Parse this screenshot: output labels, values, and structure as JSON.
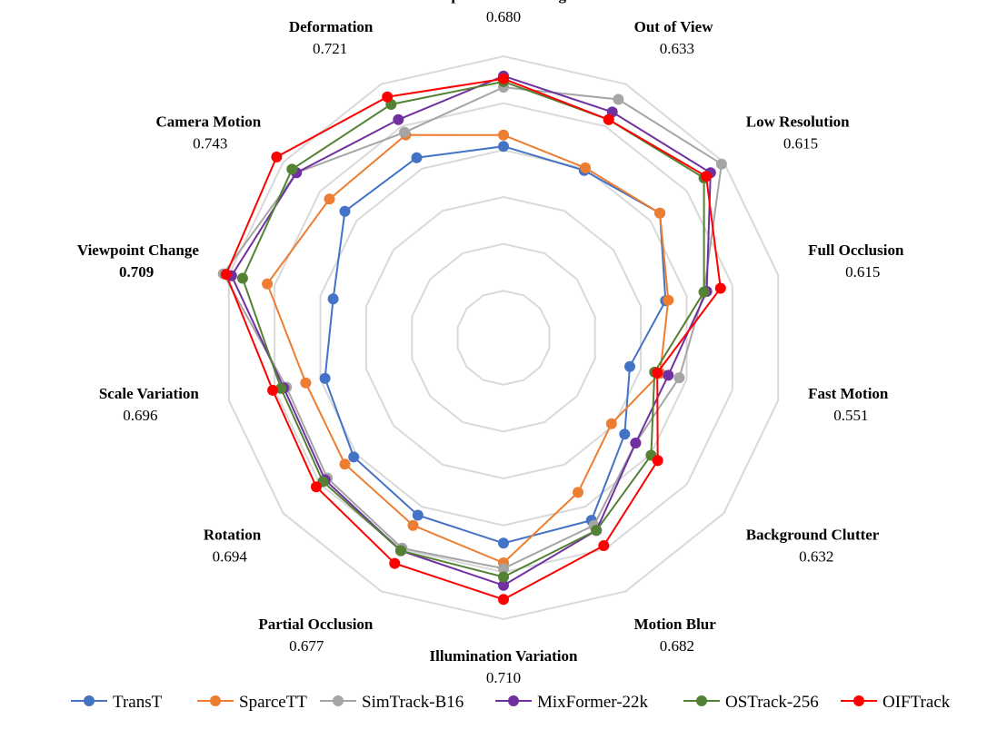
{
  "chart_data": {
    "type": "radar",
    "axes": [
      {
        "name": "Aspect Ratio Change",
        "value": "0.680"
      },
      {
        "name": "Out of View",
        "value": "0.633"
      },
      {
        "name": "Low Resolution",
        "value": "0.615"
      },
      {
        "name": "Full Occlusion",
        "value": "0.615"
      },
      {
        "name": "Fast Motion",
        "value": "0.551"
      },
      {
        "name": "Background Clutter",
        "value": "0.632"
      },
      {
        "name": "Motion Blur",
        "value": "0.682"
      },
      {
        "name": "Illumination Variation",
        "value": "0.710"
      },
      {
        "name": "Partial Occlusion",
        "value": "0.677"
      },
      {
        "name": "Rotation",
        "value": "0.694"
      },
      {
        "name": "Scale Variation",
        "value": "0.696"
      },
      {
        "name": "Viewpoint Change",
        "value": "0.709",
        "bold": true
      },
      {
        "name": "Camera Motion",
        "value": "0.743"
      },
      {
        "name": "Deformation",
        "value": "0.721"
      }
    ],
    "grid_levels": 6,
    "legend_position": "bottom",
    "series": [
      {
        "name": "TransT",
        "color": "#4472C4",
        "values": [
          0.68,
          0.66,
          0.71,
          0.59,
          0.46,
          0.55,
          0.72,
          0.73,
          0.7,
          0.68,
          0.65,
          0.62,
          0.72,
          0.71
        ]
      },
      {
        "name": "SparceTT",
        "color": "#ED7D31",
        "values": [
          0.72,
          0.67,
          0.71,
          0.6,
          0.57,
          0.49,
          0.61,
          0.8,
          0.74,
          0.72,
          0.72,
          0.86,
          0.79,
          0.8
        ]
      },
      {
        "name": "SimTrack-B16",
        "color": "#A5A5A5",
        "values": [
          0.89,
          0.94,
          0.99,
          0.73,
          0.64,
          0.6,
          0.74,
          0.82,
          0.83,
          0.8,
          0.79,
          1.02,
          0.94,
          0.81
        ]
      },
      {
        "name": "MixFormer-22k",
        "color": "#7030A0",
        "values": [
          0.93,
          0.89,
          0.94,
          0.74,
          0.6,
          0.6,
          0.76,
          0.88,
          0.84,
          0.81,
          0.8,
          0.99,
          0.94,
          0.86
        ]
      },
      {
        "name": "OSTrack-256",
        "color": "#548235",
        "values": [
          0.91,
          0.86,
          0.91,
          0.73,
          0.55,
          0.67,
          0.76,
          0.85,
          0.84,
          0.82,
          0.81,
          0.95,
          0.96,
          0.92
        ]
      },
      {
        "name": "OIFTrack",
        "color": "#FF0000",
        "values": [
          0.92,
          0.86,
          0.92,
          0.79,
          0.56,
          0.7,
          0.82,
          0.93,
          0.89,
          0.85,
          0.84,
          1.01,
          1.03,
          0.95
        ]
      }
    ]
  }
}
